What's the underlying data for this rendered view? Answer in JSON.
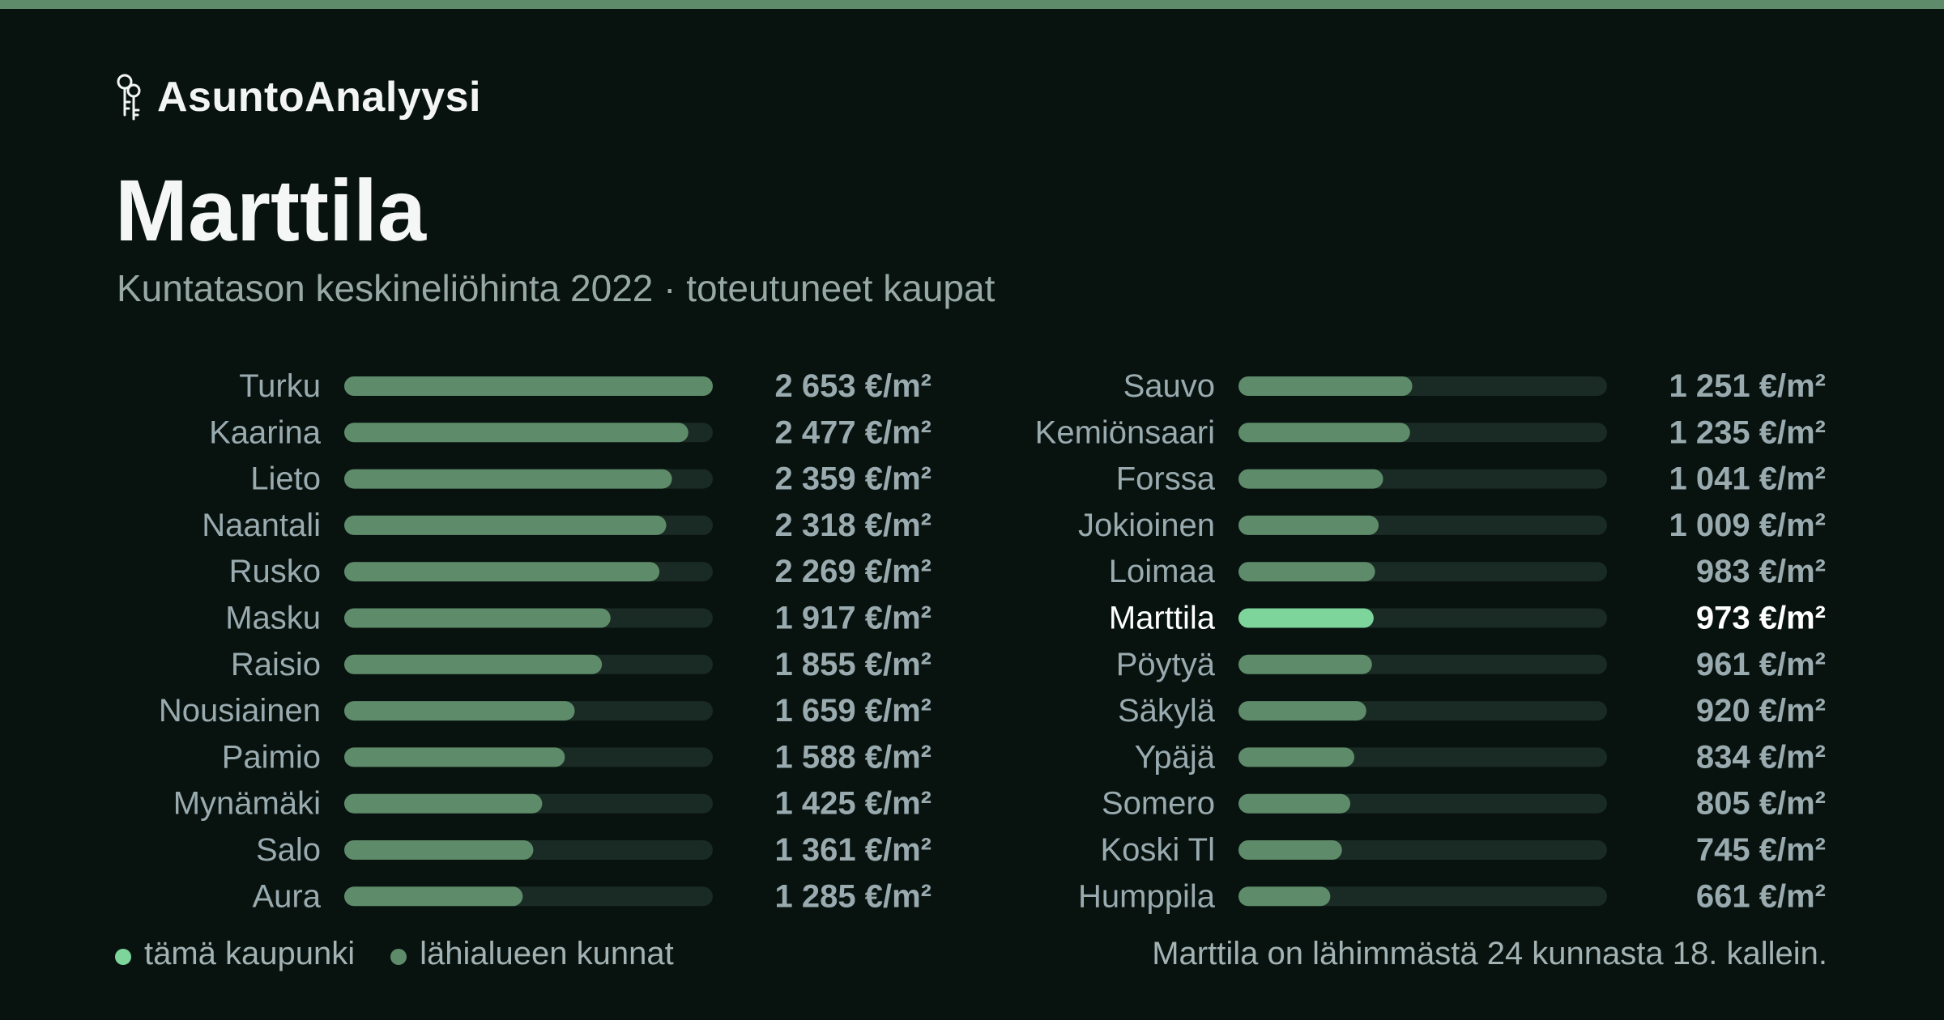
{
  "brand": {
    "name": "AsuntoAnalyysi",
    "icon": "keys-icon"
  },
  "title": "Marttila",
  "subtitle": "Kuntatason keskineliöhinta 2022 · toteutuneet kaupat",
  "colors": {
    "background": "#08130f",
    "accent_strip": "#5e8b6a",
    "bar_regular": "#5e8b6a",
    "bar_highlight": "#7dd59c",
    "bar_track": "#1a2a24",
    "label": "#9aabb0",
    "label_highlight": "#ffffff"
  },
  "chart_data": {
    "type": "bar",
    "orientation": "horizontal",
    "unit": "€/m²",
    "xlim": [
      0,
      2653
    ],
    "highlight": "Marttila",
    "categories": [
      "Turku",
      "Kaarina",
      "Lieto",
      "Naantali",
      "Rusko",
      "Masku",
      "Raisio",
      "Nousiainen",
      "Paimio",
      "Mynämäki",
      "Salo",
      "Aura",
      "Sauvo",
      "Kemiönsaari",
      "Forssa",
      "Jokioinen",
      "Loimaa",
      "Marttila",
      "Pöytyä",
      "Säkylä",
      "Ypäjä",
      "Somero",
      "Koski Tl",
      "Humppila"
    ],
    "values": [
      2653,
      2477,
      2359,
      2318,
      2269,
      1917,
      1855,
      1659,
      1588,
      1425,
      1361,
      1285,
      1251,
      1235,
      1041,
      1009,
      983,
      973,
      961,
      920,
      834,
      805,
      745,
      661
    ],
    "value_labels": [
      "2 653 €/m²",
      "2 477 €/m²",
      "2 359 €/m²",
      "2 318 €/m²",
      "2 269 €/m²",
      "1 917 €/m²",
      "1 855 €/m²",
      "1 659 €/m²",
      "1 588 €/m²",
      "1 425 €/m²",
      "1 361 €/m²",
      "1 285 €/m²",
      "1 251 €/m²",
      "1 235 €/m²",
      "1 041 €/m²",
      "1 009 €/m²",
      "983 €/m²",
      "973 €/m²",
      "961 €/m²",
      "920 €/m²",
      "834 €/m²",
      "805 €/m²",
      "745 €/m²",
      "661 €/m²"
    ],
    "legend": [
      "tämä kaupunki",
      "lähialueen kunnat"
    ],
    "grid": false
  },
  "legend": {
    "this_city": "tämä kaupunki",
    "nearby": "lähialueen kunnat"
  },
  "footnote": "Marttila on lähimmästä 24 kunnasta 18. kallein."
}
